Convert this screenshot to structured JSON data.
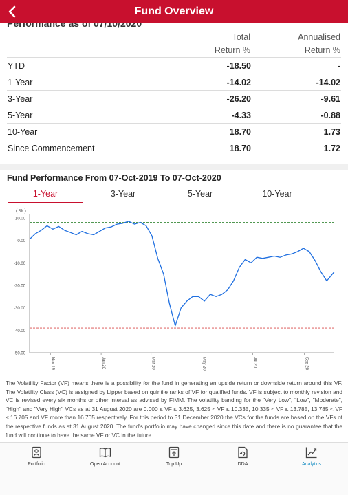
{
  "header": {
    "title": "Fund Overview"
  },
  "performance": {
    "heading": "Performance as of 07/10/2020",
    "col_total": [
      "Total",
      "Return %"
    ],
    "col_annual": [
      "Annualised",
      "Return %"
    ],
    "rows": [
      {
        "label": "YTD",
        "total": "-18.50",
        "annual": "-"
      },
      {
        "label": "1-Year",
        "total": "-14.02",
        "annual": "-14.02"
      },
      {
        "label": "3-Year",
        "total": "-26.20",
        "annual": "-9.61"
      },
      {
        "label": "5-Year",
        "total": "-4.33",
        "annual": "-0.88"
      },
      {
        "label": "10-Year",
        "total": "18.70",
        "annual": "1.73"
      },
      {
        "label": "Since Commencement",
        "total": "18.70",
        "annual": "1.72"
      }
    ]
  },
  "fund_perf": {
    "title": "Fund Performance From 07-Oct-2019 To 07-Oct-2020",
    "tabs": [
      {
        "label": "1-Year",
        "active": true
      },
      {
        "label": "3-Year",
        "active": false
      },
      {
        "label": "5-Year",
        "active": false
      },
      {
        "label": "10-Year",
        "active": false
      }
    ]
  },
  "chart_data": {
    "type": "line",
    "ylabel": "( % )",
    "ylim": [
      -50,
      10
    ],
    "yticks": [
      "10.00",
      "0.00",
      "-10.00",
      "-20.00",
      "-30.00",
      "-40.00",
      "-50.00"
    ],
    "xticks": [
      "Nov 19",
      "Jan 20",
      "Mar 20",
      "May 20",
      "Jul 20",
      "Sep 20"
    ],
    "reference_lines": [
      {
        "value": 8,
        "color": "#3a8a3a",
        "style": "dashed"
      },
      {
        "value": -39,
        "color": "#d94a4a",
        "style": "dashed"
      }
    ],
    "series": [
      {
        "color": "#1f6fe0",
        "points": [
          [
            "2019-10-07",
            0.5
          ],
          [
            "2019-10-14",
            3
          ],
          [
            "2019-10-21",
            4.5
          ],
          [
            "2019-10-28",
            6.5
          ],
          [
            "2019-11-04",
            5
          ],
          [
            "2019-11-11",
            6.2
          ],
          [
            "2019-11-18",
            4.5
          ],
          [
            "2019-11-25",
            3.5
          ],
          [
            "2019-12-02",
            2.5
          ],
          [
            "2019-12-09",
            4
          ],
          [
            "2019-12-16",
            3
          ],
          [
            "2019-12-23",
            2.5
          ],
          [
            "2019-12-30",
            4
          ],
          [
            "2020-01-06",
            5.5
          ],
          [
            "2020-01-13",
            6
          ],
          [
            "2020-01-20",
            7.2
          ],
          [
            "2020-01-27",
            7.6
          ],
          [
            "2020-02-03",
            8.5
          ],
          [
            "2020-02-10",
            7.2
          ],
          [
            "2020-02-17",
            8
          ],
          [
            "2020-02-24",
            6.5
          ],
          [
            "2020-03-02",
            2
          ],
          [
            "2020-03-09",
            -8
          ],
          [
            "2020-03-16",
            -15
          ],
          [
            "2020-03-23",
            -28
          ],
          [
            "2020-03-30",
            -38
          ],
          [
            "2020-04-06",
            -30
          ],
          [
            "2020-04-13",
            -27
          ],
          [
            "2020-04-20",
            -25
          ],
          [
            "2020-04-27",
            -25
          ],
          [
            "2020-05-04",
            -27
          ],
          [
            "2020-05-11",
            -24
          ],
          [
            "2020-05-18",
            -25
          ],
          [
            "2020-05-25",
            -24
          ],
          [
            "2020-06-01",
            -22
          ],
          [
            "2020-06-08",
            -18
          ],
          [
            "2020-06-15",
            -12
          ],
          [
            "2020-06-22",
            -8.5
          ],
          [
            "2020-06-29",
            -10
          ],
          [
            "2020-07-06",
            -7.5
          ],
          [
            "2020-07-13",
            -8
          ],
          [
            "2020-07-20",
            -7.5
          ],
          [
            "2020-07-27",
            -7
          ],
          [
            "2020-08-03",
            -7.5
          ],
          [
            "2020-08-10",
            -6.5
          ],
          [
            "2020-08-17",
            -6
          ],
          [
            "2020-08-24",
            -5
          ],
          [
            "2020-08-31",
            -3.5
          ],
          [
            "2020-09-07",
            -5
          ],
          [
            "2020-09-14",
            -9
          ],
          [
            "2020-09-21",
            -14
          ],
          [
            "2020-09-28",
            -18
          ],
          [
            "2020-10-07",
            -14
          ]
        ]
      }
    ]
  },
  "vf_text": "The Volatility Factor (VF) means there is a possibility for the fund in generating an upside return or downside return around this VF. The Volatility Class (VC) is assigned by Lipper based on quintile ranks of VF for qualified funds. VF is subject to monthly revision and VC is revised every six months or other interval as advised by FIMM. The volatility banding for the \"Very Low\", \"Low\", \"Moderate\", \"High\" and \"Very High\" VCs as at 31 August 2020 are 0.000 ≤ VF ≤ 3.625, 3.625 < VF ≤ 10.335, 10.335 < VF ≤ 13.785, 13.785 < VF ≤ 16.705 and VF more than 16.705 respectively. For this period to 31 December 2020 the VCs for the funds are based on the VFs of the respective funds as at 31 August 2020. The fund's portfolio may have changed since this date and there is no guarantee that the fund will continue to have the same VF or VC in the future.",
  "nav": [
    {
      "label": "Portfolio",
      "icon": "portfolio-icon",
      "active": false
    },
    {
      "label": "Open Account",
      "icon": "book-icon",
      "active": false
    },
    {
      "label": "Top Up",
      "icon": "top-up-icon",
      "active": false
    },
    {
      "label": "DDA",
      "icon": "dda-icon",
      "active": false
    },
    {
      "label": "Analytics",
      "icon": "analytics-icon",
      "active": true
    }
  ],
  "colors": {
    "brand": "#c8102e",
    "line": "#1f6fe0",
    "active_nav": "#1a8fc4"
  }
}
